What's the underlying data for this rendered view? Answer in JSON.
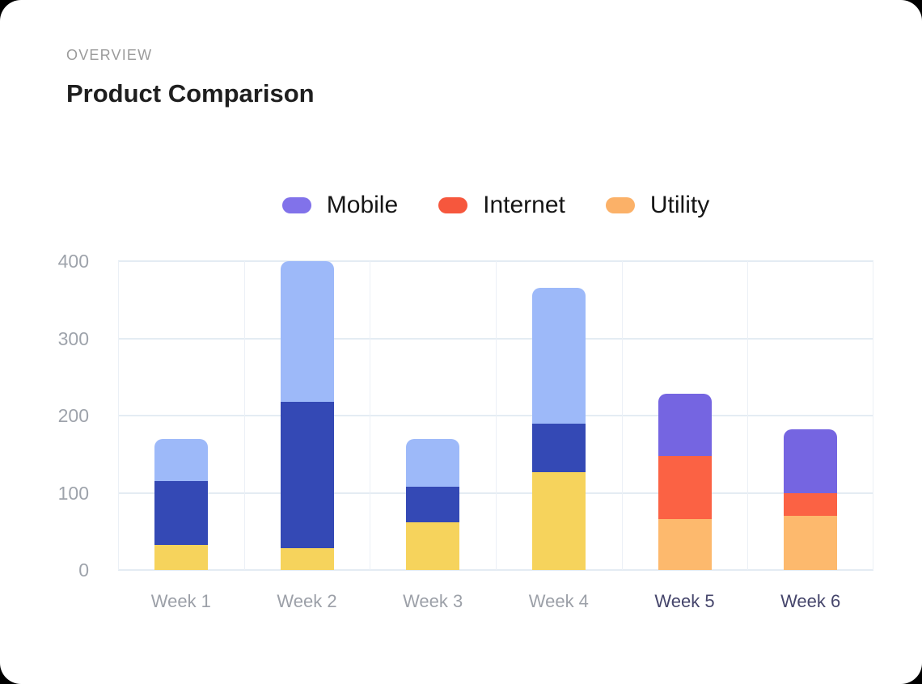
{
  "header": {
    "eyebrow": "OVERVIEW",
    "title": "Product Comparison"
  },
  "chart_data": {
    "type": "bar",
    "stacked": true,
    "title": "Product Comparison",
    "grid": true,
    "legend_position": "top",
    "ylim": [
      0,
      400
    ],
    "yticks": [
      0,
      100,
      200,
      300,
      400
    ],
    "categories": [
      "Week 1",
      "Week 2",
      "Week 3",
      "Week 4",
      "Week 5",
      "Week 6"
    ],
    "category_label_colors": [
      "#9CA0A8",
      "#9CA0A8",
      "#9CA0A8",
      "#9CA0A8",
      "#45456B",
      "#45456B"
    ],
    "legend": [
      {
        "label": "Mobile",
        "color": "#8172EA"
      },
      {
        "label": "Internet",
        "color": "#F6573D"
      },
      {
        "label": "Utility",
        "color": "#FBB168"
      }
    ],
    "bars": [
      {
        "category": "Week 1",
        "total": 170,
        "segments": [
          {
            "series": "yellow",
            "value": 32,
            "color": "#F6D35C"
          },
          {
            "series": "dark-blue",
            "value": 83,
            "color": "#3449B5"
          },
          {
            "series": "light-blue",
            "value": 55,
            "color": "#9DB9F9"
          }
        ]
      },
      {
        "category": "Week 2",
        "total": 400,
        "segments": [
          {
            "series": "yellow",
            "value": 28,
            "color": "#F6D35C"
          },
          {
            "series": "dark-blue",
            "value": 190,
            "color": "#3449B5"
          },
          {
            "series": "light-blue",
            "value": 182,
            "color": "#9DB9F9"
          }
        ]
      },
      {
        "category": "Week 3",
        "total": 170,
        "segments": [
          {
            "series": "yellow",
            "value": 62,
            "color": "#F6D35C"
          },
          {
            "series": "dark-blue",
            "value": 46,
            "color": "#3449B5"
          },
          {
            "series": "light-blue",
            "value": 62,
            "color": "#9DB9F9"
          }
        ]
      },
      {
        "category": "Week 4",
        "total": 365,
        "segments": [
          {
            "series": "yellow",
            "value": 127,
            "color": "#F6D35C"
          },
          {
            "series": "dark-blue",
            "value": 63,
            "color": "#3449B5"
          },
          {
            "series": "light-blue",
            "value": 175,
            "color": "#9DB9F9"
          }
        ]
      },
      {
        "category": "Week 5",
        "total": 228,
        "segments": [
          {
            "series": "utility",
            "value": 66,
            "color": "#FDB96D"
          },
          {
            "series": "internet",
            "value": 82,
            "color": "#FB6244"
          },
          {
            "series": "mobile",
            "value": 80,
            "color": "#7565E1"
          }
        ]
      },
      {
        "category": "Week 6",
        "total": 182,
        "segments": [
          {
            "series": "utility",
            "value": 70,
            "color": "#FDB96D"
          },
          {
            "series": "internet",
            "value": 30,
            "color": "#FB6244"
          },
          {
            "series": "mobile",
            "value": 82,
            "color": "#7565E1"
          }
        ]
      }
    ]
  },
  "colors": {
    "page_bg": "#000000",
    "card_bg": "#FFFFFF",
    "grid_h": "#E4ECF3",
    "grid_v": "#EBF0F6",
    "ytick_text": "#9EA3AB",
    "eyebrow_text": "#9B9B9B",
    "title_text": "#1F1F1F",
    "legend_text": "#161616"
  }
}
